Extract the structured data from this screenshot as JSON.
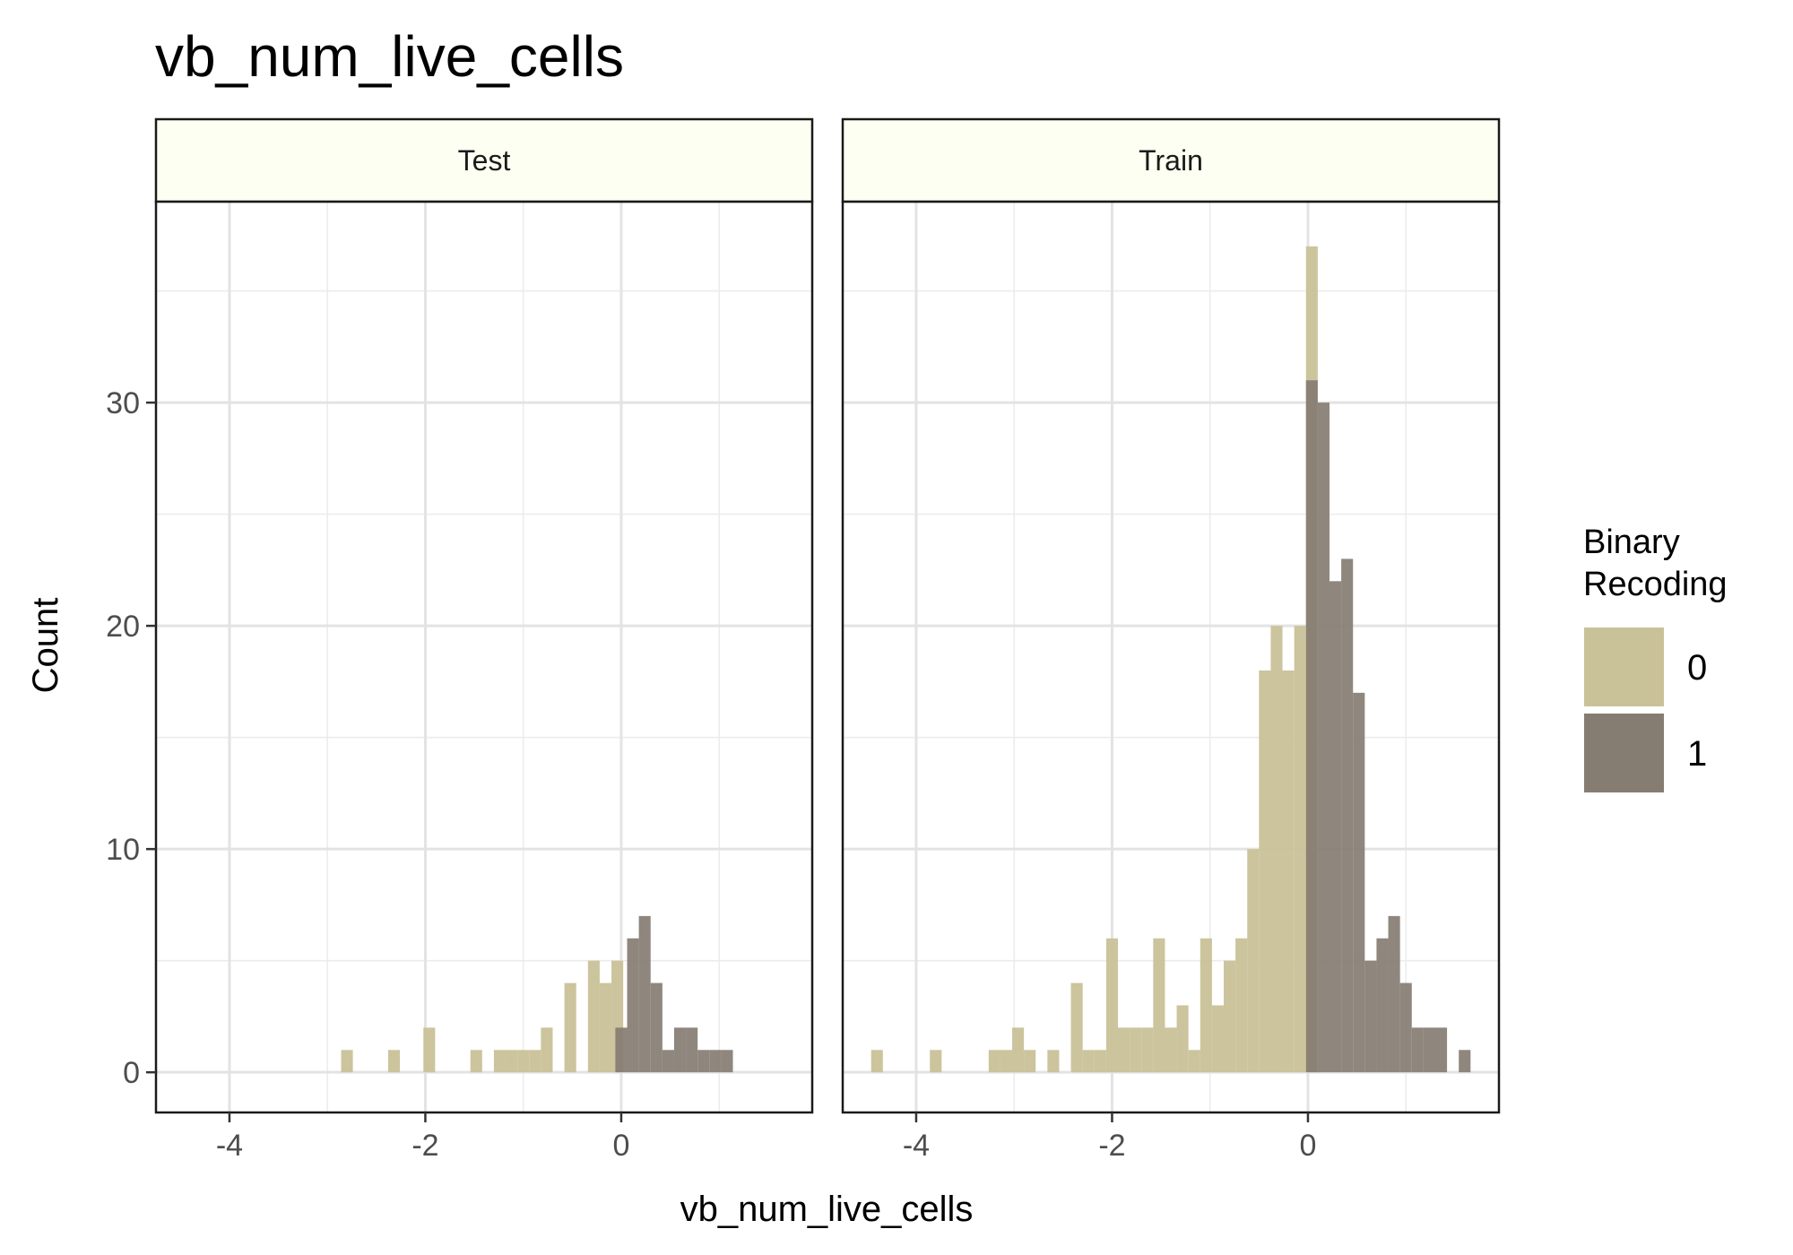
{
  "chart_data": {
    "type": "bar",
    "title": "vb_num_live_cells",
    "xlabel": "vb_num_live_cells",
    "ylabel": "Count",
    "xlim": [
      -4.75,
      1.95
    ],
    "ylim": [
      -1.8,
      39
    ],
    "x_ticks": [
      -4,
      -2,
      0
    ],
    "y_ticks": [
      0,
      10,
      20,
      30
    ],
    "grid": true,
    "bin_width": 0.12,
    "legend": {
      "title_lines": [
        "Binary",
        "Recoding"
      ],
      "position": "right",
      "entries": [
        {
          "label": "0",
          "color": "#c9c198"
        },
        {
          "label": "1",
          "color": "#857c72"
        }
      ]
    },
    "panels": [
      {
        "label": "Test",
        "series": [
          {
            "name": "0",
            "bins": [
              {
                "x0": -2.86,
                "count": 1
              },
              {
                "x0": -2.38,
                "count": 1
              },
              {
                "x0": -2.02,
                "count": 2
              },
              {
                "x0": -1.54,
                "count": 1
              },
              {
                "x0": -1.3,
                "count": 1
              },
              {
                "x0": -1.18,
                "count": 1
              },
              {
                "x0": -1.06,
                "count": 1
              },
              {
                "x0": -0.94,
                "count": 1
              },
              {
                "x0": -0.82,
                "count": 2
              },
              {
                "x0": -0.58,
                "count": 4
              },
              {
                "x0": -0.34,
                "count": 5
              },
              {
                "x0": -0.22,
                "count": 4
              },
              {
                "x0": -0.1,
                "count": 5
              }
            ]
          },
          {
            "name": "1",
            "bins": [
              {
                "x0": -0.06,
                "count": 2
              },
              {
                "x0": 0.06,
                "count": 6
              },
              {
                "x0": 0.18,
                "count": 7
              },
              {
                "x0": 0.3,
                "count": 4
              },
              {
                "x0": 0.42,
                "count": 1
              },
              {
                "x0": 0.54,
                "count": 2
              },
              {
                "x0": 0.66,
                "count": 2
              },
              {
                "x0": 0.78,
                "count": 1
              },
              {
                "x0": 0.9,
                "count": 1
              },
              {
                "x0": 1.02,
                "count": 1
              }
            ]
          }
        ]
      },
      {
        "label": "Train",
        "series": [
          {
            "name": "0",
            "bins": [
              {
                "x0": -4.46,
                "count": 1
              },
              {
                "x0": -3.86,
                "count": 1
              },
              {
                "x0": -3.26,
                "count": 1
              },
              {
                "x0": -3.14,
                "count": 1
              },
              {
                "x0": -3.02,
                "count": 2
              },
              {
                "x0": -2.9,
                "count": 1
              },
              {
                "x0": -2.66,
                "count": 1
              },
              {
                "x0": -2.42,
                "count": 4
              },
              {
                "x0": -2.3,
                "count": 1
              },
              {
                "x0": -2.18,
                "count": 1
              },
              {
                "x0": -2.06,
                "count": 6
              },
              {
                "x0": -1.94,
                "count": 2
              },
              {
                "x0": -1.82,
                "count": 2
              },
              {
                "x0": -1.7,
                "count": 2
              },
              {
                "x0": -1.58,
                "count": 6
              },
              {
                "x0": -1.46,
                "count": 2
              },
              {
                "x0": -1.34,
                "count": 3
              },
              {
                "x0": -1.22,
                "count": 1
              },
              {
                "x0": -1.1,
                "count": 6
              },
              {
                "x0": -0.98,
                "count": 3
              },
              {
                "x0": -0.86,
                "count": 5
              },
              {
                "x0": -0.74,
                "count": 6
              },
              {
                "x0": -0.62,
                "count": 10
              },
              {
                "x0": -0.5,
                "count": 18
              },
              {
                "x0": -0.38,
                "count": 20
              },
              {
                "x0": -0.26,
                "count": 18
              },
              {
                "x0": -0.14,
                "count": 20
              },
              {
                "x0": -0.02,
                "count": 37
              }
            ]
          },
          {
            "name": "1",
            "bins": [
              {
                "x0": -0.02,
                "count": 31
              },
              {
                "x0": 0.1,
                "count": 30
              },
              {
                "x0": 0.22,
                "count": 22
              },
              {
                "x0": 0.34,
                "count": 23
              },
              {
                "x0": 0.46,
                "count": 17
              },
              {
                "x0": 0.58,
                "count": 5
              },
              {
                "x0": 0.7,
                "count": 6
              },
              {
                "x0": 0.82,
                "count": 7
              },
              {
                "x0": 0.94,
                "count": 4
              },
              {
                "x0": 1.06,
                "count": 2
              },
              {
                "x0": 1.18,
                "count": 2
              },
              {
                "x0": 1.3,
                "count": 2
              },
              {
                "x0": 1.54,
                "count": 1
              }
            ]
          }
        ]
      }
    ]
  }
}
